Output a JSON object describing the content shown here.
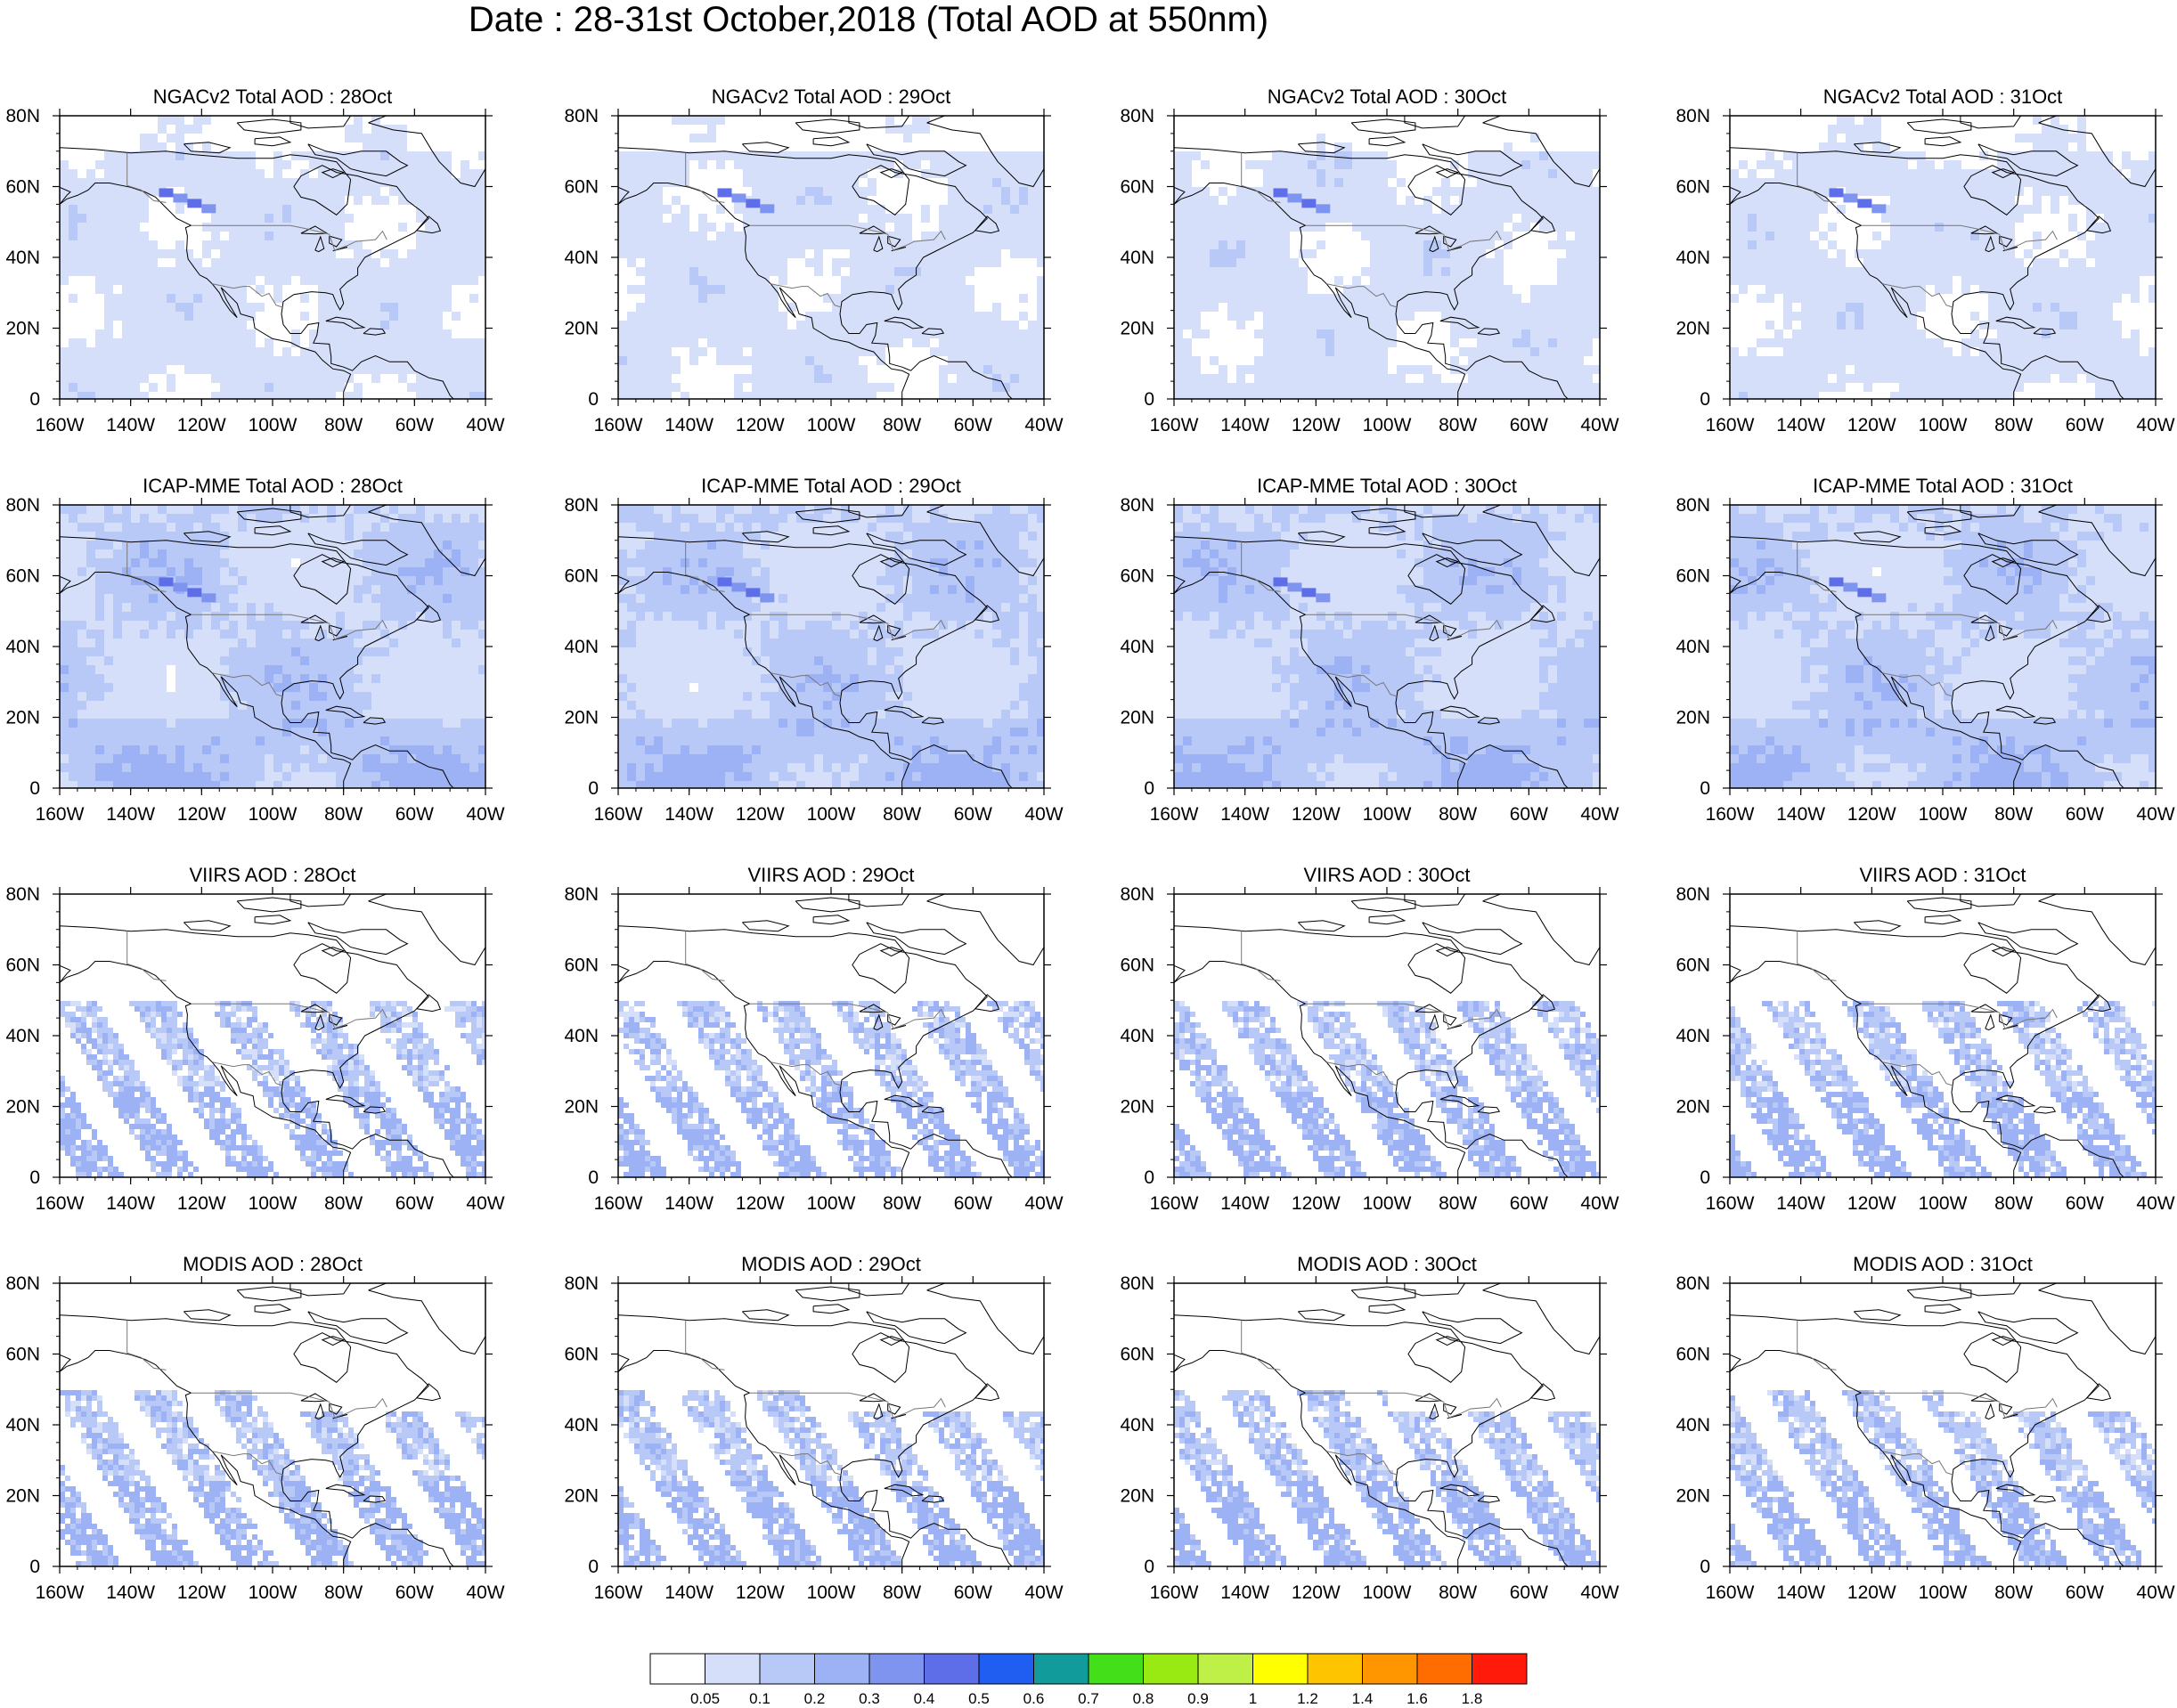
{
  "title": "Date : 28-31st October,2018 (Total AOD at 550nm)",
  "columns": [
    "28Oct",
    "29Oct",
    "30Oct",
    "31Oct"
  ],
  "rows": [
    {
      "product": "NGACv2 Total AOD",
      "panel_titles": [
        "NGACv2 Total AOD : 28Oct",
        "NGACv2 Total AOD : 29Oct",
        "NGACv2 Total AOD : 30Oct",
        "NGACv2 Total AOD : 31Oct"
      ]
    },
    {
      "product": "ICAP-MME Total AOD",
      "panel_titles": [
        "ICAP-MME Total AOD : 28Oct",
        "ICAP-MME Total AOD : 29Oct",
        "ICAP-MME Total AOD : 30Oct",
        "ICAP-MME Total AOD : 31Oct"
      ]
    },
    {
      "product": "VIIRS AOD",
      "panel_titles": [
        "VIIRS AOD : 28Oct",
        "VIIRS AOD : 29Oct",
        "VIIRS AOD : 30Oct",
        "VIIRS AOD : 31Oct"
      ]
    },
    {
      "product": "MODIS AOD",
      "panel_titles": [
        "MODIS AOD : 28Oct",
        "MODIS AOD : 29Oct",
        "MODIS AOD : 30Oct",
        "MODIS AOD : 31Oct"
      ]
    }
  ],
  "map": {
    "lon_range": [
      -160,
      -40
    ],
    "lat_range": [
      0,
      80
    ],
    "x_ticks": [
      "160W",
      "140W",
      "120W",
      "100W",
      "80W",
      "60W",
      "40W"
    ],
    "y_ticks": [
      "0",
      "20N",
      "40N",
      "60N",
      "80N"
    ]
  },
  "colorbar": {
    "labels": [
      "0.05",
      "0.1",
      "0.2",
      "0.3",
      "0.4",
      "0.5",
      "0.6",
      "0.7",
      "0.8",
      "0.9",
      "1",
      "1.2",
      "1.4",
      "1.6",
      "1.8"
    ],
    "colors": [
      "#ffffff",
      "#d6dffa",
      "#b8c8f7",
      "#9db2f4",
      "#7f94ef",
      "#5d6ee8",
      "#1f5ef0",
      "#119b9b",
      "#43e01a",
      "#99ea12",
      "#bff047",
      "#ffff00",
      "#ffc400",
      "#ff9600",
      "#ff6c00",
      "#ff1a0a"
    ]
  }
}
